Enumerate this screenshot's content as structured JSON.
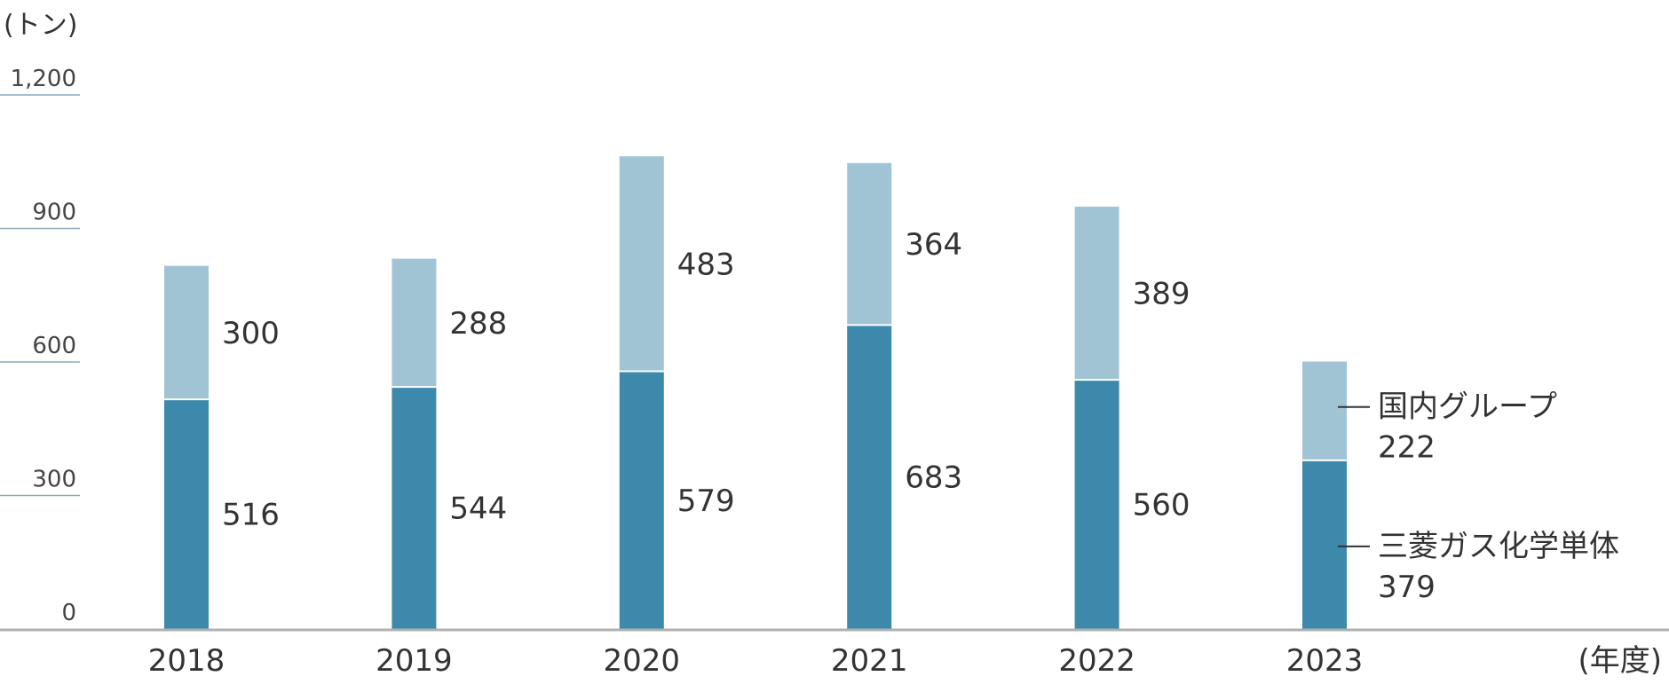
{
  "chart_data": {
    "type": "bar",
    "stacked": true,
    "y_unit": "(トン)",
    "x_unit": "(年度)",
    "categories": [
      "2018",
      "2019",
      "2020",
      "2021",
      "2022",
      "2023"
    ],
    "series": [
      {
        "name": "三菱ガス化学単体",
        "values": [
          516,
          544,
          579,
          683,
          560,
          379
        ],
        "color": "#3d89ab"
      },
      {
        "name": "国内グループ",
        "values": [
          300,
          288,
          483,
          364,
          389,
          222
        ],
        "color": "#a1c4d5"
      }
    ],
    "ylim": [
      0,
      1200
    ],
    "yticks": [
      0,
      300,
      600,
      900,
      1200
    ],
    "ytick_labels": [
      "0",
      "300",
      "600",
      "900",
      "1,200"
    ],
    "legend": "inline-right-of-last-bar",
    "grid": false,
    "colors": {
      "axis": "#b0b0b0",
      "tick": "#8aaabb",
      "text": "#333333"
    }
  }
}
